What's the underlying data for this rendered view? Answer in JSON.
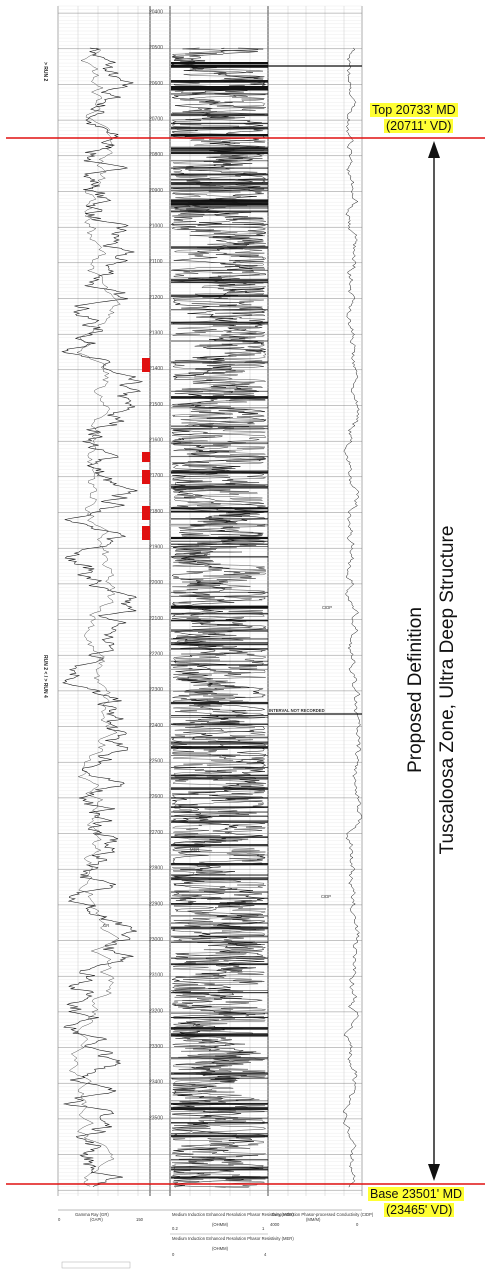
{
  "depth_ticks": [
    "20400",
    "20500",
    "20600",
    "20700",
    "20800",
    "20900",
    "21000",
    "21100",
    "21200",
    "21300",
    "21400",
    "21500",
    "21600",
    "21700",
    "21800",
    "21900",
    "22000",
    "22100",
    "22200",
    "22300",
    "22400",
    "22500",
    "22600",
    "22700",
    "22800",
    "22900",
    "23000",
    "23100",
    "23200",
    "23300",
    "23400",
    "23500"
  ],
  "runs": {
    "top_label": "> RUN 2",
    "mid_label": "RUN 2 < / > RUN 4"
  },
  "curve_labels": {
    "gr": "GR",
    "cidp_1": "CIDP",
    "cidp_2": "CIDP",
    "mer": "MER"
  },
  "interval_note": "INTERVAL NOT RECORDED",
  "top_marker": {
    "md": "Top 20733' MD",
    "vd": "(20711' VD)"
  },
  "base_marker": {
    "md": "Base 23501' MD",
    "vd": "(23465' VD)"
  },
  "zone_title": {
    "line1": "Proposed Definition",
    "line2": "Tuscaloosa Zone, Ultra Deep Structure"
  },
  "footer": {
    "track1_name": "Gamma Ray (GR)",
    "track1_unit": "(GAPI)",
    "track1_min": "0",
    "track1_max": "150",
    "track2_name": "Medium Induction Enhanced Resolution Phasor Resistivity (MER)",
    "track2_unit": "(OHMM)",
    "track2_min": "0.2",
    "track2_max": "1",
    "track2b_name": "Medium Induction Enhanced Resolution Phasor Resistivity (MER)",
    "track2b_unit": "(OHMM)",
    "track2b_min": "0",
    "track2b_max": "4",
    "track3_name": "Deep Induction Phasor-processed Conductivity (CIDP)",
    "track3_unit": "(MM/M)",
    "track3_min": "4000",
    "track3_max": "0"
  },
  "colors": {
    "marker_line": "#e01010",
    "marker_box": "#ffff33",
    "curve": "#111111",
    "grid": "#9a9a9a"
  }
}
